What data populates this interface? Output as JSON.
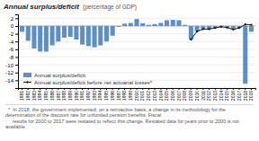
{
  "chart_data": {
    "type": "bar",
    "title": "Annual surplus/deficit",
    "subtitle": "(percentage of GDP)",
    "categories": [
      "1981",
      "1982",
      "1983",
      "1984",
      "1985",
      "1986",
      "1987",
      "1988",
      "1989",
      "1990",
      "1991",
      "1992",
      "1993",
      "1994",
      "1995",
      "1996",
      "1997",
      "1998",
      "1999",
      "2000",
      "2001",
      "2002",
      "2003",
      "2004",
      "2005",
      "2006",
      "2007",
      "2008",
      "2009",
      "2010",
      "2011",
      "2012",
      "2013",
      "2014",
      "2015",
      "2016",
      "2017",
      "2018",
      "2019"
    ],
    "series": [
      {
        "name": "Annual surplus/deficit",
        "type": "bar",
        "color": "#5b8fc9",
        "values": [
          -1.5,
          -3.8,
          -5.8,
          -6.6,
          -6.6,
          -5.0,
          -4.0,
          -3.0,
          -2.8,
          -3.5,
          -4.8,
          -5.2,
          -5.5,
          -5.0,
          -4.0,
          -2.5,
          -0.2,
          0.6,
          0.8,
          1.8,
          0.7,
          0.3,
          0.5,
          0.8,
          1.5,
          1.6,
          1.5,
          0.3,
          -3.5,
          -1.4,
          -0.8,
          -0.8,
          -0.5,
          -0.2,
          -0.4,
          -0.9,
          -0.5,
          -14.9,
          -1.5
        ]
      },
      {
        "name": "Annual surplus/deficit before net actuarial losses*",
        "type": "line",
        "color": "#1a1a1a",
        "marker": "circle",
        "values": [
          null,
          null,
          null,
          null,
          null,
          null,
          null,
          null,
          null,
          null,
          null,
          null,
          null,
          null,
          null,
          null,
          null,
          null,
          null,
          null,
          null,
          null,
          null,
          null,
          null,
          null,
          null,
          null,
          -3.5,
          -1.4,
          -0.8,
          -0.8,
          -0.5,
          -0.2,
          -0.4,
          -0.9,
          -0.5,
          0.4,
          0.3
        ]
      }
    ],
    "ylim": [
      -16,
      3
    ],
    "yticks": [
      2,
      0,
      -2,
      -4,
      -6,
      -8,
      -10,
      -12,
      -14
    ],
    "grid": true,
    "legend": "bottom",
    "footnote": "  *  In 2018, the government implemented, on a retroactive basis, a change in its methodology for the determination of the discount rate for unfunded pension benefits. Fiscal\n     results for 2000 to 2017 were restated to reflect this change. Restated data for years prior to 2000 is not available."
  }
}
